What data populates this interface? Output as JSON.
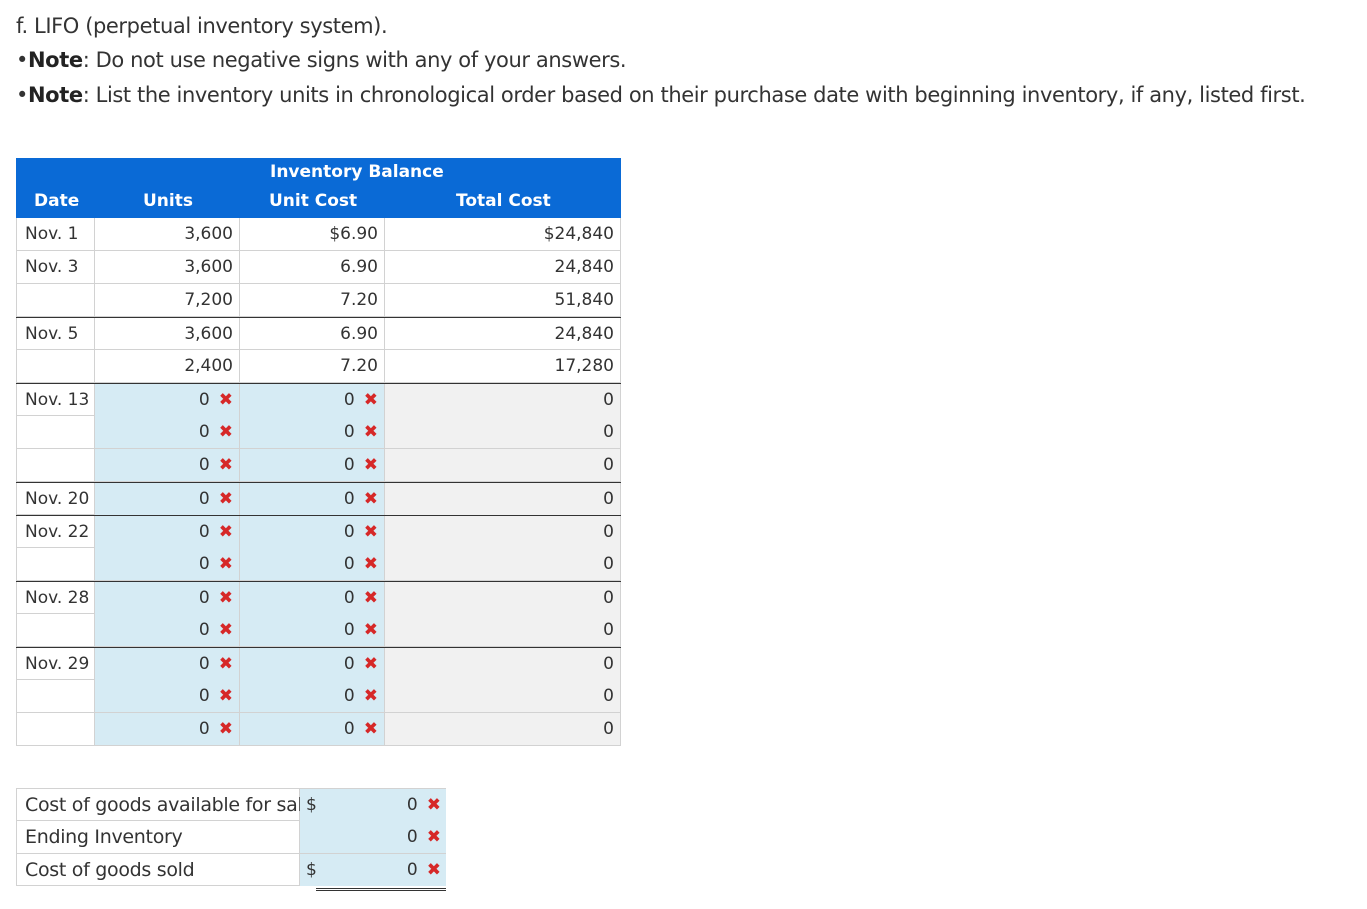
{
  "heading": "f. LIFO (perpetual inventory system).",
  "notes": [
    {
      "bullet": "•",
      "label": "Note",
      "text": ": Do not use negative signs with any of your answers."
    },
    {
      "bullet": "•",
      "label": "Note",
      "text": ": List the inventory units in chronological order based on their purchase date with beginning inventory, if any, listed first."
    }
  ],
  "table": {
    "group_header": "Inventory Balance",
    "columns": {
      "date": "Date",
      "units": "Units",
      "unit_cost": "Unit Cost",
      "total_cost": "Total Cost"
    },
    "rows": [
      {
        "date": "Nov. 1",
        "units": "3,600",
        "unit_cost": "$6.90",
        "total_cost": "$24,840"
      },
      {
        "date": "Nov. 3",
        "units": "3,600",
        "unit_cost": "6.90",
        "total_cost": "24,840"
      },
      {
        "date": "",
        "units": "7,200",
        "unit_cost": "7.20",
        "total_cost": "51,840"
      },
      {
        "date": "Nov. 5",
        "units": "3,600",
        "unit_cost": "6.90",
        "total_cost": "24,840"
      },
      {
        "date": "",
        "units": "2,400",
        "unit_cost": "7.20",
        "total_cost": "17,280"
      },
      {
        "date": "Nov. 13",
        "units": "0",
        "unit_cost": "0",
        "total_cost": "0"
      },
      {
        "date": "",
        "units": "0",
        "unit_cost": "0",
        "total_cost": "0"
      },
      {
        "date": "",
        "units": "0",
        "unit_cost": "0",
        "total_cost": "0"
      },
      {
        "date": "Nov. 20",
        "units": "0",
        "unit_cost": "0",
        "total_cost": "0"
      },
      {
        "date": "Nov. 22",
        "units": "0",
        "unit_cost": "0",
        "total_cost": "0"
      },
      {
        "date": "",
        "units": "0",
        "unit_cost": "0",
        "total_cost": "0"
      },
      {
        "date": "Nov. 28",
        "units": "0",
        "unit_cost": "0",
        "total_cost": "0"
      },
      {
        "date": "",
        "units": "0",
        "unit_cost": "0",
        "total_cost": "0"
      },
      {
        "date": "Nov. 29",
        "units": "0",
        "unit_cost": "0",
        "total_cost": "0"
      },
      {
        "date": "",
        "units": "0",
        "unit_cost": "0",
        "total_cost": "0"
      },
      {
        "date": "",
        "units": "0",
        "unit_cost": "0",
        "total_cost": "0"
      }
    ]
  },
  "summary": {
    "currency": "$",
    "rows": [
      {
        "label": "Cost of goods available for sale",
        "value": "0"
      },
      {
        "label": "Ending Inventory",
        "value": "0"
      },
      {
        "label": "Cost of goods sold",
        "value": "0"
      }
    ]
  },
  "incorrect_mark": "✖",
  "colors": {
    "header_blue": "#0a6ad6",
    "input_bg": "#d6ebf4",
    "calc_bg": "#f1f1f1",
    "incorrect_red": "#d62828"
  }
}
